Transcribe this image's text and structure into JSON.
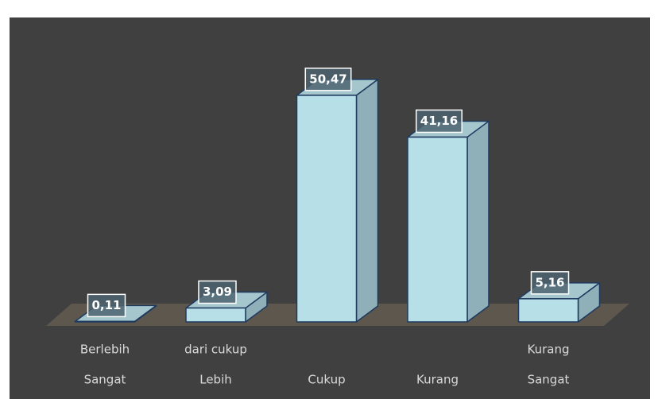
{
  "chart_data": {
    "type": "bar3d",
    "categories": [
      [
        "Berlebih",
        "Sangat"
      ],
      [
        "dari cukup",
        "Lebih"
      ],
      [
        "Cukup"
      ],
      [
        "Kurang"
      ],
      [
        "Kurang",
        "Sangat"
      ]
    ],
    "values": [
      0.11,
      3.09,
      50.47,
      41.16,
      5.16
    ],
    "value_labels": [
      "0,11",
      "3,09",
      "50,47",
      "41,16",
      "5,16"
    ],
    "color": "#b7dfe8"
  }
}
